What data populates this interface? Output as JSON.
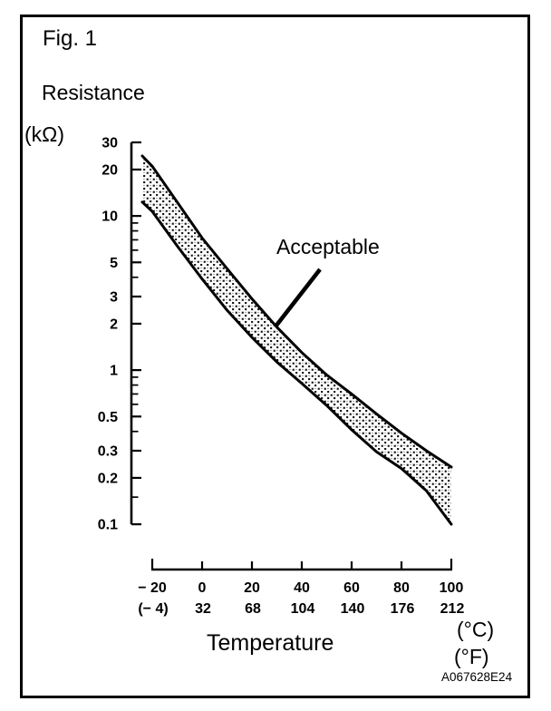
{
  "figure": {
    "fig_label": "Fig. 1",
    "y_axis_title": "Resistance",
    "y_axis_unit": "(kΩ)",
    "x_axis_title": "Temperature",
    "celsius_unit": "(°C)",
    "fahrenheit_unit": "(°F)",
    "doc_code": "A067628E24",
    "band_label": "Acceptable"
  },
  "chart_data": {
    "type": "area",
    "title": "Fig. 1",
    "xlabel": "Temperature (°C / °F)",
    "ylabel": "Resistance (kΩ)",
    "x_axis": {
      "unit_primary": "°C",
      "unit_secondary": "°F",
      "ticks_c": [
        -20,
        0,
        20,
        40,
        60,
        80,
        100
      ],
      "tick_labels_c": [
        "− 20",
        "0",
        "20",
        "40",
        "60",
        "80",
        "100"
      ],
      "tick_labels_f": [
        "(− 4)",
        "32",
        "68",
        "104",
        "140",
        "176",
        "212"
      ],
      "range_c": [
        -20,
        100
      ]
    },
    "y_axis": {
      "scale": "log",
      "unit": "kΩ",
      "range": [
        0.1,
        30
      ],
      "major_ticks": [
        30,
        20,
        10,
        5,
        3,
        2,
        1,
        0.5,
        0.3,
        0.2,
        0.1
      ],
      "major_tick_labels": [
        "30",
        "20",
        "10",
        "5",
        "3",
        "2",
        "1",
        "0.5",
        "0.3",
        "0.2",
        "0.1"
      ],
      "minor_ticks": [
        9,
        8,
        7,
        6,
        4,
        0.9,
        0.8,
        0.7,
        0.6,
        0.4,
        0.15
      ]
    },
    "band": {
      "name": "Acceptable",
      "temps_c": [
        -24,
        -20,
        -10,
        0,
        10,
        20,
        30,
        40,
        50,
        60,
        70,
        80,
        90,
        100
      ],
      "upper_kohm": [
        24.5,
        21,
        12.3,
        7.2,
        4.55,
        2.9,
        1.9,
        1.3,
        0.93,
        0.7,
        0.52,
        0.39,
        0.3,
        0.235
      ],
      "lower_kohm": [
        12.3,
        10.7,
        6.4,
        3.9,
        2.45,
        1.63,
        1.13,
        0.82,
        0.59,
        0.41,
        0.295,
        0.23,
        0.165,
        0.1
      ]
    },
    "annotation": {
      "label": "Acceptable",
      "pointer_from": {
        "t_c": 47.3,
        "r_kohm": 4.5
      },
      "pointer_to": {
        "t_c": 29.8,
        "r_kohm": 1.95
      }
    }
  }
}
